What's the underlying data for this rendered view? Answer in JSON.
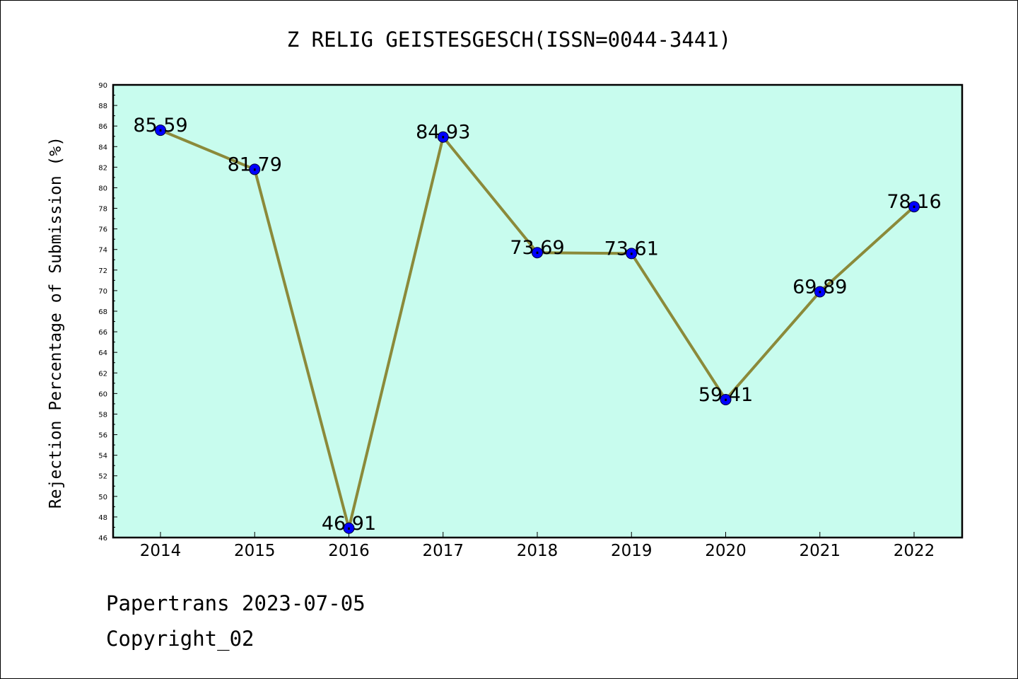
{
  "chart_data": {
    "type": "line",
    "title": "Z RELIG GEISTESGESCH(ISSN=0044-3441)",
    "xlabel": "",
    "ylabel": "Rejection Percentage of Submission (%)",
    "categories": [
      "2014",
      "2015",
      "2016",
      "2017",
      "2018",
      "2019",
      "2020",
      "2021",
      "2022"
    ],
    "series": [
      {
        "values": [
          85.59,
          81.79,
          46.91,
          84.93,
          73.69,
          73.61,
          59.41,
          69.89,
          78.16
        ],
        "labels": [
          "85.59",
          "81.79",
          "46.91",
          "84.93",
          "73.69",
          "73.61",
          "59.41",
          "69.89",
          "78.16"
        ],
        "line_color": "#8b8a3a",
        "marker_color": "#0000ff"
      }
    ],
    "ylim": [
      46,
      90
    ],
    "yticks": [
      "46",
      "48",
      "50",
      "52",
      "54",
      "56",
      "58",
      "60",
      "62",
      "64",
      "66",
      "68",
      "70",
      "72",
      "74",
      "76",
      "78",
      "80",
      "82",
      "84",
      "86",
      "88",
      "90"
    ],
    "grid": false,
    "plot_background": "#c8fcee"
  },
  "footer": {
    "line1": "Papertrans 2023-07-05",
    "line2": "Copyright_02"
  }
}
